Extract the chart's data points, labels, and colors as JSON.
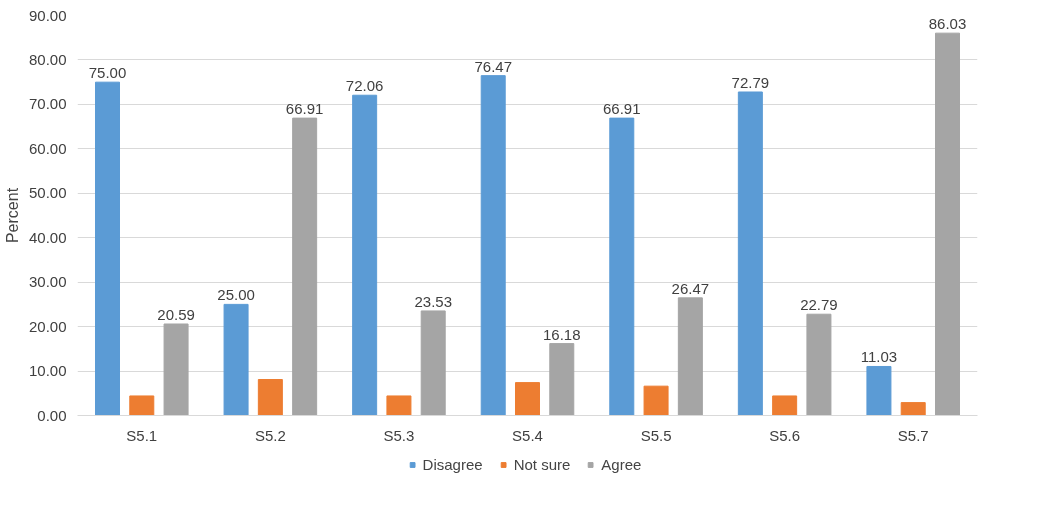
{
  "chart_data": {
    "type": "bar",
    "ylabel": "Percent",
    "categories": [
      "S5.1",
      "S5.2",
      "S5.3",
      "S5.4",
      "S5.5",
      "S5.6",
      "S5.7"
    ],
    "series": [
      {
        "name": "Disagree",
        "color": "#5b9bd5",
        "values": [
          75.0,
          25.0,
          72.06,
          76.47,
          66.91,
          72.79,
          11.03
        ],
        "value_labels": [
          "75.00",
          "25.00",
          "72.06",
          "76.47",
          "66.91",
          "72.79",
          "11.03"
        ]
      },
      {
        "name": "Not sure",
        "color": "#ed7d31",
        "values": [
          4.4,
          8.1,
          4.4,
          7.4,
          6.6,
          4.4,
          2.9
        ]
      },
      {
        "name": "Agree",
        "color": "#a5a5a5",
        "values": [
          20.59,
          66.91,
          23.53,
          16.18,
          26.47,
          22.79,
          86.03
        ],
        "value_labels": [
          "20.59",
          "66.91",
          "23.53",
          "16.18",
          "26.47",
          "22.79",
          "86.03"
        ]
      }
    ],
    "ylim": [
      0,
      90
    ],
    "yticks": [
      {
        "value": 0,
        "label": "0.00"
      },
      {
        "value": 10,
        "label": "10.00"
      },
      {
        "value": 20,
        "label": "20.00"
      },
      {
        "value": 30,
        "label": "30.00"
      },
      {
        "value": 40,
        "label": "40.00"
      },
      {
        "value": 50,
        "label": "50.00"
      },
      {
        "value": 60,
        "label": "60.00"
      },
      {
        "value": 70,
        "label": "70.00"
      },
      {
        "value": 80,
        "label": "80.00"
      },
      {
        "value": 90,
        "label": "90.00"
      }
    ],
    "grid": "y",
    "legend": "bottom"
  }
}
